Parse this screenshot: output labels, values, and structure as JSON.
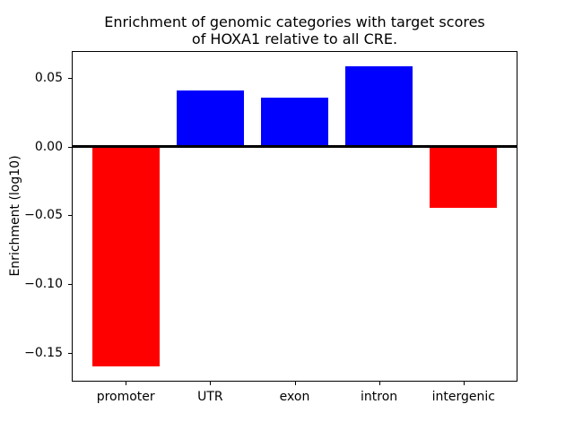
{
  "chart_data": {
    "type": "bar",
    "title_line1": "Enrichment of genomic categories with target scores",
    "title_line2": "of HOXA1 relative to all CRE.",
    "title": "Enrichment of genomic categories with target scores of HOXA1 relative to all CRE.",
    "categories": [
      "promoter",
      "UTR",
      "exon",
      "intron",
      "intergenic"
    ],
    "values": [
      -0.16,
      0.041,
      0.0358,
      0.0585,
      -0.0443
    ],
    "series": [
      {
        "name": "enrichment",
        "values": [
          -0.16,
          0.041,
          0.0358,
          0.0585,
          -0.0443
        ]
      }
    ],
    "bar_colors": [
      "#ff0000",
      "#0000ff",
      "#0000ff",
      "#0000ff",
      "#ff0000"
    ],
    "positive_color": "#0000ff",
    "negative_color": "#ff0000",
    "xlabel": "",
    "ylabel": "Enrichment (log10)",
    "ylim": [
      -0.1709,
      0.0694
    ],
    "yticks": [
      0.05,
      0.0,
      -0.05,
      -0.1,
      -0.15
    ],
    "ytick_labels": [
      "0.05",
      "0.00",
      "−0.05",
      "−0.10",
      "−0.15"
    ],
    "grid": false,
    "legend_position": "none",
    "zero_line": true,
    "axis_color": "#000000",
    "text_color": "#000000",
    "background_color": "#ffffff"
  }
}
